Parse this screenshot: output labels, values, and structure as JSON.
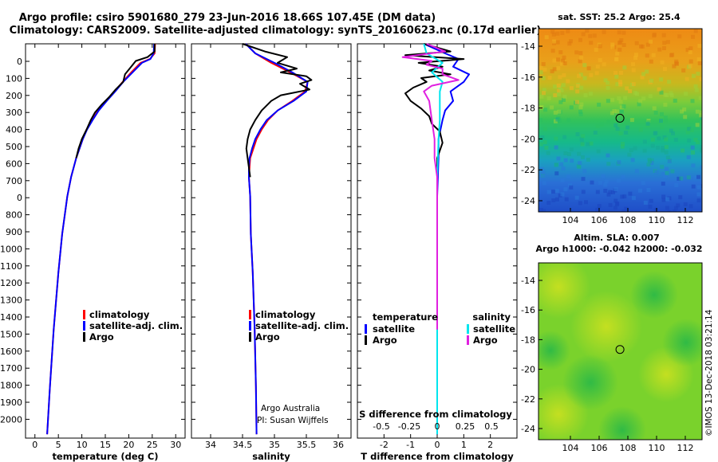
{
  "header": {
    "title1": "Argo profile: csiro 5901680_279 23-Jun-2016 18.66S 107.45E (DM data)",
    "title2": "Climatology: CARS2009. Satellite-adjusted climatology: synTS_20160623.nc (0.17d earlier)"
  },
  "depth_ticks": [
    "0",
    "100",
    "200",
    "300",
    "400",
    "500",
    "600",
    "700",
    "0",
    "800",
    "900",
    "1000",
    "1100",
    "1200",
    "1300",
    "1400",
    "1500",
    "1600",
    "1700",
    "1800",
    "1900",
    "2000"
  ],
  "colors": {
    "climatology": "#ff0000",
    "satellite": "#0000ff",
    "argo": "#000000",
    "sat_salinity": "#00e5ee",
    "argo_salinity": "#e020e0"
  },
  "chart_data": [
    {
      "type": "line",
      "panel": "temperature",
      "xlabel": "temperature (deg C)",
      "xlim": [
        -2,
        32
      ],
      "ylim": [
        2070,
        0
      ],
      "xticks": [
        0,
        5,
        10,
        15,
        20,
        25,
        30
      ],
      "legend": [
        "climatology",
        "satellite-adj. clim.",
        "Argo"
      ],
      "legend_position": "lower-right",
      "series": [
        {
          "name": "climatology",
          "color": "#ff0000",
          "y": [
            0,
            50,
            80,
            100,
            150,
            200,
            250,
            300,
            350,
            400,
            450,
            500,
            600,
            700,
            800,
            1000,
            1200,
            1500,
            1800,
            2050
          ],
          "x": [
            25.6,
            25.5,
            24.5,
            22.5,
            20.5,
            18.7,
            17.0,
            15.2,
            13.5,
            12.2,
            11.0,
            10.2,
            8.8,
            7.7,
            6.9,
            5.8,
            5.0,
            4.0,
            3.2,
            2.6
          ]
        },
        {
          "name": "satellite-adj. clim.",
          "color": "#0000ff",
          "y": [
            0,
            50,
            80,
            100,
            150,
            200,
            250,
            300,
            350,
            400,
            450,
            500,
            600,
            700,
            800,
            1000,
            1200,
            1500,
            1800,
            2050
          ],
          "x": [
            25.4,
            25.3,
            24.6,
            22.8,
            20.8,
            18.8,
            17.1,
            15.3,
            13.6,
            12.3,
            11.1,
            10.2,
            8.8,
            7.7,
            6.9,
            5.8,
            5.0,
            4.0,
            3.2,
            2.6
          ]
        },
        {
          "name": "Argo",
          "color": "#000000",
          "y": [
            0,
            40,
            70,
            90,
            120,
            160,
            200,
            240,
            280,
            320,
            360,
            400,
            450,
            500,
            550,
            600
          ],
          "x": [
            25.5,
            25.5,
            24.0,
            21.5,
            20.5,
            19.2,
            18.8,
            17.2,
            15.8,
            14.2,
            12.8,
            11.9,
            11.0,
            10.0,
            9.3,
            8.8
          ]
        }
      ]
    },
    {
      "type": "line",
      "panel": "salinity",
      "xlabel": "salinity",
      "xlim": [
        33.7,
        36.2
      ],
      "ylim": [
        2070,
        0
      ],
      "xticks": [
        34,
        34.5,
        35,
        35.5,
        36
      ],
      "legend": [
        "climatology",
        "satellite-adj. clim.",
        "Argo"
      ],
      "legend_position": "lower-right",
      "annotation": [
        "Argo Australia",
        "PI: Susan Wijffels"
      ],
      "series": [
        {
          "name": "climatology",
          "color": "#ff0000",
          "y": [
            0,
            50,
            100,
            150,
            200,
            250,
            300,
            350,
            400,
            450,
            500,
            550,
            600,
            650,
            700,
            800,
            1000,
            1200,
            1500,
            1800,
            2050
          ],
          "x": [
            34.55,
            34.7,
            34.95,
            35.25,
            35.52,
            35.48,
            35.28,
            35.05,
            34.9,
            34.8,
            34.72,
            34.67,
            34.62,
            34.61,
            34.6,
            34.62,
            34.63,
            34.66,
            34.69,
            34.71,
            34.72
          ]
        },
        {
          "name": "satellite-adj. clim.",
          "color": "#0000ff",
          "y": [
            0,
            50,
            100,
            150,
            200,
            250,
            300,
            350,
            400,
            450,
            500,
            550,
            600,
            650,
            700,
            800,
            1000,
            1200,
            1500,
            1800,
            2050
          ],
          "x": [
            34.55,
            34.7,
            35.0,
            35.28,
            35.52,
            35.5,
            35.3,
            35.05,
            34.88,
            34.78,
            34.7,
            34.65,
            34.61,
            34.6,
            34.6,
            34.62,
            34.63,
            34.66,
            34.69,
            34.71,
            34.72
          ]
        },
        {
          "name": "Argo",
          "color": "#000000",
          "y": [
            0,
            40,
            70,
            100,
            130,
            150,
            170,
            190,
            210,
            240,
            270,
            300,
            350,
            400,
            450,
            500,
            550,
            600,
            650,
            700
          ],
          "x": [
            34.5,
            34.85,
            35.2,
            35.05,
            35.35,
            35.1,
            35.5,
            35.58,
            35.4,
            35.55,
            35.1,
            34.95,
            34.8,
            34.7,
            34.62,
            34.58,
            34.56,
            34.58,
            34.6,
            34.62
          ]
        }
      ]
    },
    {
      "type": "line",
      "panel": "differences",
      "xlabel": "T difference from climatology",
      "top_label": "S difference from climatology",
      "xlim": [
        -3,
        3
      ],
      "ylim": [
        2070,
        0
      ],
      "xticks": [
        -2,
        -1,
        0,
        1,
        2
      ],
      "xticks_salinity": [
        "-0.5",
        "-0.25",
        "0",
        "0.25",
        "0.5"
      ],
      "legend_groups": {
        "left": {
          "title": "temperature",
          "items": [
            "satellite",
            "Argo"
          ]
        },
        "right": {
          "title": "salinity",
          "items": [
            "satellite",
            "Argo"
          ]
        }
      },
      "series": [
        {
          "name": "satellite (temperature)",
          "color": "#0000ff",
          "y": [
            0,
            50,
            80,
            120,
            160,
            200,
            250,
            300,
            350,
            400,
            500,
            600,
            800,
            1000,
            1500,
            2050
          ],
          "x": [
            -0.5,
            0.3,
            0.8,
            0.6,
            1.2,
            1.0,
            0.5,
            0.6,
            0.3,
            0.2,
            0.05,
            0.05,
            0.0,
            0.0,
            0.0,
            0.0
          ]
        },
        {
          "name": "Argo (temperature)",
          "color": "#000000",
          "y": [
            0,
            40,
            60,
            80,
            100,
            120,
            140,
            160,
            180,
            200,
            230,
            260,
            300,
            340,
            380,
            420,
            460,
            520,
            600,
            700
          ],
          "x": [
            -0.5,
            0.5,
            -1.2,
            1.0,
            -0.7,
            0.2,
            -0.3,
            0.5,
            -0.6,
            -0.4,
            -0.9,
            -1.2,
            -1.0,
            -0.6,
            -0.3,
            -0.2,
            0.1,
            0.2,
            0.0,
            0.0
          ]
        },
        {
          "name": "satellite (salinity)",
          "color": "#00e5ee",
          "y": [
            0,
            50,
            100,
            150,
            200,
            250,
            300,
            400,
            500,
            700,
            1000,
            1500,
            2050
          ],
          "x": [
            -0.5,
            -0.4,
            0.2,
            -0.2,
            0.2,
            0.1,
            0.1,
            0.1,
            0.05,
            0.0,
            0.0,
            0.0,
            0.0
          ]
        },
        {
          "name": "Argo (salinity)",
          "color": "#e020e0",
          "y": [
            0,
            40,
            70,
            90,
            110,
            130,
            160,
            190,
            220,
            250,
            300,
            400,
            500,
            600,
            700,
            800,
            1500
          ],
          "x": [
            -0.4,
            0.3,
            -1.3,
            -0.2,
            -0.4,
            0.2,
            0.2,
            0.8,
            -0.2,
            -0.5,
            -0.3,
            -0.2,
            -0.1,
            -0.1,
            0.0,
            0.0,
            0.0
          ]
        }
      ]
    }
  ],
  "maps": {
    "sst": {
      "title": "sat. SST: 25.2 Argo: 25.4",
      "yticks": [
        "-14",
        "-16",
        "-18",
        "-20",
        "-22",
        "-24"
      ],
      "xticks": [
        "104",
        "106",
        "108",
        "110",
        "112"
      ],
      "profile_lon": 107.45,
      "profile_lat": -18.66
    },
    "sla": {
      "title1": "Altim. SLA: 0.007",
      "title2": "Argo h1000: -0.042 h2000: -0.032",
      "yticks": [
        "-14",
        "-16",
        "-18",
        "-20",
        "-22",
        "-24"
      ],
      "xticks": [
        "104",
        "106",
        "108",
        "110",
        "112"
      ],
      "profile_lon": 107.45,
      "profile_lat": -18.66
    }
  },
  "credit": "©IMOS 13-Dec-2018 03:21:14"
}
